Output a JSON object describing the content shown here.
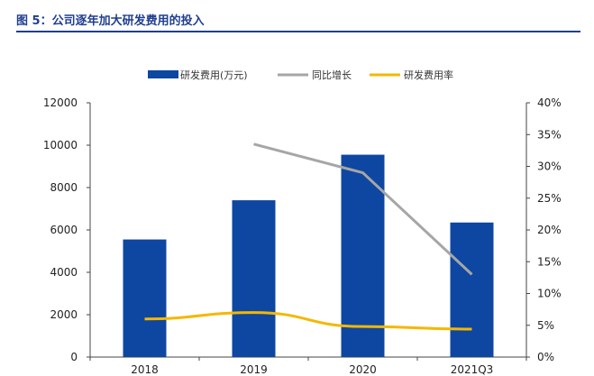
{
  "figure": {
    "title": "图 5：公司逐年加大研发费用的投入"
  },
  "colors": {
    "bar": "#0d47a1",
    "growth": "#a6a6a6",
    "rate": "#f5b700",
    "title": "#1f3f8f"
  },
  "chart_data": {
    "type": "bar",
    "categories": [
      "2018",
      "2019",
      "2020",
      "2021Q3"
    ],
    "series": [
      {
        "name": "研发费用(万元)",
        "type": "bar",
        "axis": "left",
        "values": [
          5550,
          7400,
          9550,
          6350
        ]
      },
      {
        "name": "同比增长",
        "type": "line",
        "axis": "right",
        "values": [
          null,
          0.335,
          0.29,
          0.13
        ]
      },
      {
        "name": "研发费用率",
        "type": "line",
        "axis": "right",
        "values": [
          0.06,
          0.07,
          0.048,
          0.044
        ]
      }
    ],
    "y_left": {
      "min": 0,
      "max": 12000,
      "ticks": [
        "0",
        "2000",
        "4000",
        "6000",
        "8000",
        "10000",
        "12000"
      ]
    },
    "y_right": {
      "min": 0,
      "max": 0.4,
      "ticks": [
        "0%",
        "5%",
        "10%",
        "15%",
        "20%",
        "25%",
        "30%",
        "35%",
        "40%"
      ]
    },
    "legend_position": "top",
    "grid": false
  }
}
